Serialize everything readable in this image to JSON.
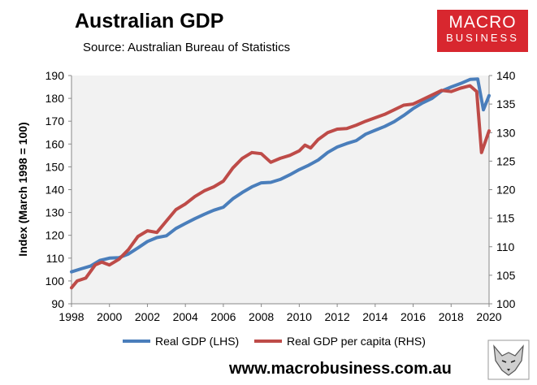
{
  "header": {
    "title": "Australian GDP",
    "source": "Source: Australian Bureau of Statistics"
  },
  "logo": {
    "line1": "MACRO",
    "line2": "BUSINESS"
  },
  "footer": {
    "website": "www.macrobusiness.com.au"
  },
  "colors": {
    "lhs_series": "#4a7ebb",
    "rhs_series": "#be4b48",
    "logo_bg": "#d8272f",
    "plot_bg": "#f2f2f2"
  },
  "chart_data": {
    "type": "line",
    "title": "Australian GDP",
    "ylabel": "Index (March 1998 = 100)",
    "ylim": [
      90,
      190
    ],
    "y2lim": [
      100,
      140
    ],
    "xlim": [
      1998,
      2020
    ],
    "x_ticks": [
      1998,
      2000,
      2002,
      2004,
      2006,
      2008,
      2010,
      2012,
      2014,
      2016,
      2018,
      2020
    ],
    "y_ticks": [
      90,
      100,
      110,
      120,
      130,
      140,
      150,
      160,
      170,
      180,
      190
    ],
    "y2_ticks": [
      100,
      105,
      110,
      115,
      120,
      125,
      130,
      135,
      140
    ],
    "legend_position": "bottom",
    "series": [
      {
        "name": "Real GDP (LHS)",
        "axis": "left",
        "points": [
          [
            1998.0,
            104
          ],
          [
            1998.5,
            105.3
          ],
          [
            1999.0,
            106.5
          ],
          [
            1999.5,
            109
          ],
          [
            2000.0,
            110
          ],
          [
            2000.5,
            110.2
          ],
          [
            2001.0,
            111.8
          ],
          [
            2001.5,
            114.5
          ],
          [
            2002.0,
            117.3
          ],
          [
            2002.5,
            119
          ],
          [
            2003.0,
            119.8
          ],
          [
            2003.5,
            123
          ],
          [
            2004.0,
            125.2
          ],
          [
            2004.5,
            127.3
          ],
          [
            2005.0,
            129.2
          ],
          [
            2005.5,
            131
          ],
          [
            2006.0,
            132.3
          ],
          [
            2006.5,
            136
          ],
          [
            2007.0,
            138.8
          ],
          [
            2007.5,
            141.2
          ],
          [
            2008.0,
            143
          ],
          [
            2008.5,
            143.2
          ],
          [
            2009.0,
            144.5
          ],
          [
            2009.5,
            146.5
          ],
          [
            2010.0,
            148.8
          ],
          [
            2010.5,
            150.7
          ],
          [
            2011.0,
            153
          ],
          [
            2011.5,
            156.3
          ],
          [
            2012.0,
            158.7
          ],
          [
            2012.5,
            160.2
          ],
          [
            2013.0,
            161.5
          ],
          [
            2013.5,
            164.3
          ],
          [
            2014.0,
            166
          ],
          [
            2014.5,
            167.7
          ],
          [
            2015.0,
            169.8
          ],
          [
            2015.5,
            172.5
          ],
          [
            2016.0,
            175.5
          ],
          [
            2016.5,
            178
          ],
          [
            2017.0,
            180
          ],
          [
            2017.5,
            183.2
          ],
          [
            2018.0,
            185
          ],
          [
            2018.5,
            186.5
          ],
          [
            2019.0,
            188.3
          ],
          [
            2019.4,
            188.5
          ],
          [
            2019.7,
            175
          ],
          [
            2020.0,
            181.2
          ]
        ]
      },
      {
        "name": "Real GDP per capita (RHS)",
        "axis": "right",
        "points": [
          [
            1998.0,
            102.8
          ],
          [
            1998.3,
            104
          ],
          [
            1998.75,
            104.5
          ],
          [
            1999.25,
            106.8
          ],
          [
            1999.6,
            107.3
          ],
          [
            2000.0,
            106.8
          ],
          [
            2000.5,
            107.8
          ],
          [
            2001.0,
            109.5
          ],
          [
            2001.5,
            111.8
          ],
          [
            2002.0,
            112.8
          ],
          [
            2002.5,
            112.5
          ],
          [
            2003.0,
            114.5
          ],
          [
            2003.5,
            116.5
          ],
          [
            2004.0,
            117.5
          ],
          [
            2004.5,
            118.8
          ],
          [
            2005.0,
            119.8
          ],
          [
            2005.5,
            120.5
          ],
          [
            2006.0,
            121.5
          ],
          [
            2006.5,
            123.8
          ],
          [
            2007.0,
            125.5
          ],
          [
            2007.5,
            126.5
          ],
          [
            2008.0,
            126.3
          ],
          [
            2008.5,
            124.8
          ],
          [
            2009.0,
            125.5
          ],
          [
            2009.5,
            126
          ],
          [
            2010.0,
            126.8
          ],
          [
            2010.3,
            127.8
          ],
          [
            2010.6,
            127.3
          ],
          [
            2011.0,
            128.8
          ],
          [
            2011.5,
            130
          ],
          [
            2012.0,
            130.6
          ],
          [
            2012.5,
            130.7
          ],
          [
            2013.0,
            131.3
          ],
          [
            2013.5,
            132
          ],
          [
            2014.0,
            132.6
          ],
          [
            2014.5,
            133.2
          ],
          [
            2015.0,
            134
          ],
          [
            2015.5,
            134.8
          ],
          [
            2016.0,
            135
          ],
          [
            2016.5,
            135.8
          ],
          [
            2017.0,
            136.6
          ],
          [
            2017.5,
            137.4
          ],
          [
            2018.0,
            137.2
          ],
          [
            2018.5,
            137.8
          ],
          [
            2019.0,
            138.2
          ],
          [
            2019.35,
            137.2
          ],
          [
            2019.6,
            126.5
          ],
          [
            2020.0,
            130.3
          ]
        ]
      }
    ]
  }
}
